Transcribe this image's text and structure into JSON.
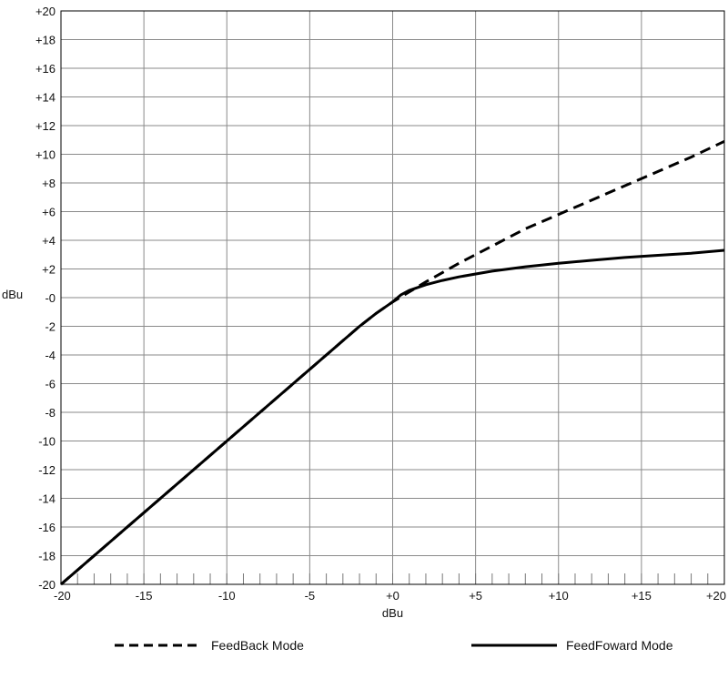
{
  "chart_data": {
    "type": "line",
    "title": "",
    "xlabel": "dBu",
    "ylabel": "dBu",
    "xlim": [
      -20,
      20
    ],
    "ylim": [
      -20,
      20
    ],
    "grid": true,
    "legend_position": "bottom",
    "x_ticks": [
      {
        "value": -20,
        "label": "-20"
      },
      {
        "value": -15,
        "label": "-15"
      },
      {
        "value": -10,
        "label": "-10"
      },
      {
        "value": -5,
        "label": "-5"
      },
      {
        "value": 0,
        "label": "+0"
      },
      {
        "value": 5,
        "label": "+5"
      },
      {
        "value": 10,
        "label": "+10"
      },
      {
        "value": 15,
        "label": "+15"
      },
      {
        "value": 20,
        "label": "+20"
      }
    ],
    "y_ticks": [
      {
        "value": 20,
        "label": "+20"
      },
      {
        "value": 18,
        "label": "+18"
      },
      {
        "value": 16,
        "label": "+16"
      },
      {
        "value": 14,
        "label": "+14"
      },
      {
        "value": 12,
        "label": "+12"
      },
      {
        "value": 10,
        "label": "+10"
      },
      {
        "value": 8,
        "label": "+8"
      },
      {
        "value": 6,
        "label": "+6"
      },
      {
        "value": 4,
        "label": "+4"
      },
      {
        "value": 2,
        "label": "+2"
      },
      {
        "value": 0,
        "label": "-0"
      },
      {
        "value": -2,
        "label": "-2"
      },
      {
        "value": -4,
        "label": "-4"
      },
      {
        "value": -6,
        "label": "-6"
      },
      {
        "value": -8,
        "label": "-8"
      },
      {
        "value": -10,
        "label": "-10"
      },
      {
        "value": -12,
        "label": "-12"
      },
      {
        "value": -14,
        "label": "-14"
      },
      {
        "value": -16,
        "label": "-16"
      },
      {
        "value": -18,
        "label": "-18"
      },
      {
        "value": -20,
        "label": "-20"
      }
    ],
    "series": [
      {
        "name": "FeedBack Mode",
        "style": "dashed",
        "color": "#000000",
        "x": [
          -20,
          -10,
          -3,
          -2,
          -1,
          0,
          1,
          2,
          4,
          6,
          8,
          10,
          12,
          14,
          16,
          18,
          20
        ],
        "y": [
          -20,
          -10,
          -3,
          -2,
          -1.1,
          -0.3,
          0.4,
          1.1,
          2.4,
          3.6,
          4.8,
          5.8,
          6.8,
          7.8,
          8.8,
          9.8,
          10.9
        ]
      },
      {
        "name": "FeedFoward Mode",
        "style": "solid",
        "color": "#000000",
        "x": [
          -20,
          -10,
          -3,
          -2,
          -1,
          0,
          0.5,
          1,
          2,
          3,
          4,
          6,
          8,
          10,
          12,
          14,
          16,
          18,
          20
        ],
        "y": [
          -20,
          -10,
          -3,
          -2,
          -1.1,
          -0.3,
          0.2,
          0.5,
          0.9,
          1.2,
          1.45,
          1.85,
          2.15,
          2.4,
          2.6,
          2.8,
          2.95,
          3.1,
          3.3
        ]
      }
    ]
  }
}
